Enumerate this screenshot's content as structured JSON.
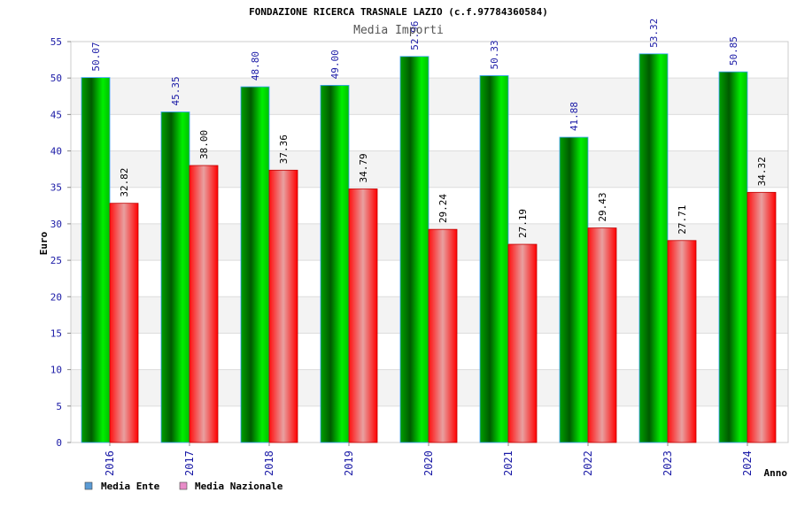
{
  "chart_data": {
    "type": "bar",
    "title": "FONDAZIONE RICERCA TRASNALE LAZIO (c.f.97784360584)",
    "subtitle": "Media Importi",
    "xlabel": "Anno",
    "ylabel": "Euro",
    "ylim": [
      0,
      55
    ],
    "ytick_step": 5,
    "yticks": [
      "0",
      "5",
      "10",
      "15",
      "20",
      "25",
      "30",
      "35",
      "40",
      "45",
      "50",
      "55"
    ],
    "categories": [
      "2016",
      "2017",
      "2018",
      "2019",
      "2020",
      "2021",
      "2022",
      "2023",
      "2024"
    ],
    "series": [
      {
        "name": "Media Ente",
        "values": [
          50.07,
          45.35,
          48.8,
          49.0,
          52.96,
          50.33,
          41.88,
          53.32,
          50.85
        ],
        "labels": [
          "50.07",
          "45.35",
          "48.80",
          "49.00",
          "52.96",
          "50.33",
          "41.88",
          "53.32",
          "50.85"
        ],
        "legend_color": "#5b9bd5",
        "color_dark": "#006400",
        "color_light": "#00e600"
      },
      {
        "name": "Media Nazionale",
        "values": [
          32.82,
          38.0,
          37.36,
          34.79,
          29.24,
          27.19,
          29.43,
          27.71,
          34.32
        ],
        "labels": [
          "32.82",
          "38.00",
          "37.36",
          "34.79",
          "29.24",
          "27.19",
          "29.43",
          "27.71",
          "34.32"
        ],
        "legend_color": "#e88cc8",
        "color_dark": "#ff0000",
        "color_light": "#e8a0a0"
      }
    ],
    "grid": true,
    "legend_position": "bottom-left"
  }
}
